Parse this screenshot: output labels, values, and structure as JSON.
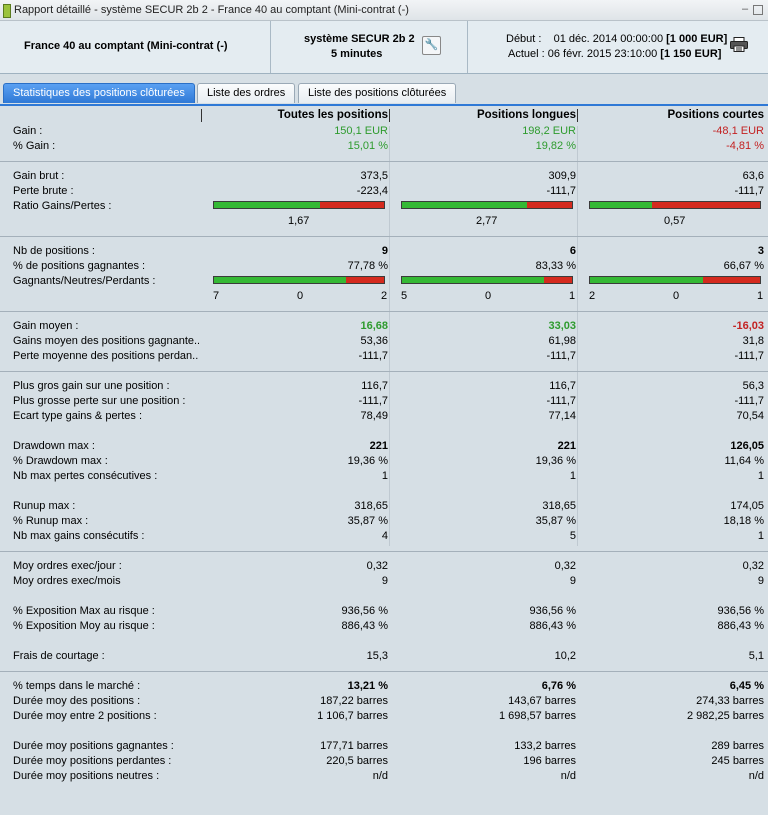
{
  "window": {
    "title": "Rapport détaillé - système SECUR 2b 2 - France 40 au comptant (Mini-contrat  (-)"
  },
  "header": {
    "instrument": "France 40 au comptant (Mini-contrat  (-)",
    "system_name": "système SECUR 2b 2",
    "timeframe": "5 minutes",
    "start_label": "Début :",
    "start_date": "01 déc. 2014 00:00:00",
    "start_capital": "[1 000 EUR]",
    "current_label": "Actuel :",
    "current_date": "06 févr. 2015 23:10:00",
    "current_capital": "[1 150 EUR]"
  },
  "tabs": [
    "Statistiques des positions clôturées",
    "Liste des ordres",
    "Liste des positions clôturées"
  ],
  "columns": [
    "Toutes les positions",
    "Positions longues",
    "Positions courtes"
  ],
  "colors": {
    "positive": "#2e9b2e",
    "negative": "#c32222",
    "bar_green": "#35b935",
    "bar_red": "#d42a1e",
    "tab_active": "#2f79d6"
  },
  "stats": {
    "gain": {
      "label": "Gain :",
      "values": [
        "150,1 EUR",
        "198,2 EUR",
        "-48,1 EUR"
      ]
    },
    "pct_gain": {
      "label": "% Gain :",
      "values": [
        "15,01 %",
        "19,82 %",
        "-4,81 %"
      ]
    },
    "gain_brut": {
      "label": "Gain brut :",
      "values": [
        "373,5",
        "309,9",
        "63,6"
      ]
    },
    "perte_brute": {
      "label": "Perte brute :",
      "values": [
        "-223,4",
        "-111,7",
        "-111,7"
      ]
    },
    "ratio": {
      "label": "Ratio Gains/Pertes :",
      "values": [
        "1,67",
        "2,77",
        "0,57"
      ],
      "green_fraction": [
        0.626,
        0.735,
        0.363
      ]
    },
    "nb_positions": {
      "label": "Nb de positions :",
      "values": [
        "9",
        "6",
        "3"
      ]
    },
    "pct_gagnantes": {
      "label": "% de positions gagnantes :",
      "values": [
        "77,78 %",
        "83,33 %",
        "66,67 %"
      ],
      "green_fraction": [
        0.7778,
        0.8333,
        0.6667
      ]
    },
    "gnp": {
      "label": "Gagnants/Neutres/Perdants :",
      "winners": [
        "7",
        "5",
        "2"
      ],
      "neutral": [
        "0",
        "0",
        "0"
      ],
      "losers": [
        "2",
        "1",
        "1"
      ]
    },
    "gain_moyen": {
      "label": "Gain moyen :",
      "values": [
        "16,68",
        "33,03",
        "-16,03"
      ]
    },
    "gains_moyen_gagnantes": {
      "label": "Gains moyen des positions gagnante...",
      "values": [
        "53,36",
        "61,98",
        "31,8"
      ]
    },
    "perte_moyenne_perdantes": {
      "label": "Perte moyenne des positions perdan...",
      "values": [
        "-111,7",
        "-111,7",
        "-111,7"
      ]
    },
    "plus_gros_gain": {
      "label": "Plus gros gain sur une position :",
      "values": [
        "116,7",
        "116,7",
        "56,3"
      ]
    },
    "plus_grosse_perte": {
      "label": "Plus grosse perte sur une position :",
      "values": [
        "-111,7",
        "-111,7",
        "-111,7"
      ]
    },
    "ecart_type": {
      "label": "Ecart type gains & pertes :",
      "values": [
        "78,49",
        "77,14",
        "70,54"
      ]
    },
    "drawdown_max": {
      "label": "Drawdown max :",
      "values": [
        "221",
        "221",
        "126,05"
      ]
    },
    "pct_drawdown_max": {
      "label": "% Drawdown max :",
      "values": [
        "19,36 %",
        "19,36 %",
        "11,64 %"
      ]
    },
    "nb_max_pertes": {
      "label": "Nb max pertes consécutives :",
      "values": [
        "1",
        "1",
        "1"
      ]
    },
    "runup_max": {
      "label": "Runup max :",
      "values": [
        "318,65",
        "318,65",
        "174,05"
      ]
    },
    "pct_runup_max": {
      "label": "% Runup max :",
      "values": [
        "35,87 %",
        "35,87 %",
        "18,18 %"
      ]
    },
    "nb_max_gains": {
      "label": "Nb max gains consécutifs :",
      "values": [
        "4",
        "5",
        "1"
      ]
    },
    "moy_jour": {
      "label": "Moy ordres exec/jour :",
      "values": [
        "0,32",
        "0,32",
        "0,32"
      ]
    },
    "moy_mois": {
      "label": "Moy ordres exec/mois",
      "values": [
        "9",
        "9",
        "9"
      ]
    },
    "expo_max": {
      "label": "% Exposition Max au risque :",
      "values": [
        "936,56 %",
        "936,56 %",
        "936,56 %"
      ]
    },
    "expo_moy": {
      "label": "% Exposition Moy au risque :",
      "values": [
        "886,43 %",
        "886,43 %",
        "886,43 %"
      ]
    },
    "frais": {
      "label": "Frais de courtage :",
      "values": [
        "15,3",
        "10,2",
        "5,1"
      ]
    },
    "pct_temps": {
      "label": "% temps dans le marché :",
      "values": [
        "13,21 %",
        "6,76 %",
        "6,45 %"
      ]
    },
    "duree_positions": {
      "label": "Durée moy des positions :",
      "values": [
        "187,22 barres",
        "143,67 barres",
        "274,33 barres"
      ]
    },
    "duree_entre": {
      "label": "Durée moy entre 2 positions :",
      "values": [
        "1 106,7 barres",
        "1 698,57 barres",
        "2 982,25 barres"
      ]
    },
    "duree_gagnantes": {
      "label": "Durée moy positions gagnantes :",
      "values": [
        "177,71 barres",
        "133,2 barres",
        "289 barres"
      ]
    },
    "duree_perdantes": {
      "label": "Durée moy positions perdantes :",
      "values": [
        "220,5 barres",
        "196 barres",
        "245 barres"
      ]
    },
    "duree_neutres": {
      "label": "Durée moy positions neutres :",
      "values": [
        "n/d",
        "n/d",
        "n/d"
      ]
    }
  }
}
